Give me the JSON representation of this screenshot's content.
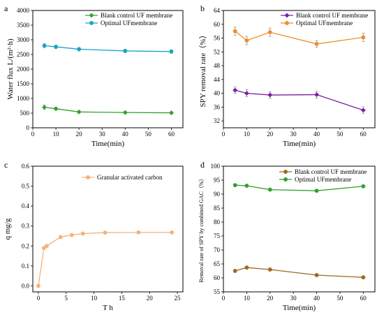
{
  "chart_data": [
    {
      "panel": "a",
      "type": "line",
      "xlabel": "Time(min)",
      "ylabel": "Water flux L/(m²·h)",
      "xlim": [
        0,
        65
      ],
      "ylim": [
        0,
        4000
      ],
      "xticks": [
        0,
        10,
        20,
        30,
        40,
        50,
        60
      ],
      "yticks": [
        0,
        500,
        1000,
        1500,
        2000,
        2500,
        3000,
        3500,
        4000
      ],
      "legend_position": "top-center",
      "series": [
        {
          "name": "Blank control UF membrane",
          "color": "#33a02c",
          "marker": "diamond",
          "x": [
            5,
            10,
            20,
            40,
            60
          ],
          "y": [
            700,
            650,
            540,
            520,
            510
          ],
          "err": [
            80,
            50,
            40,
            40,
            40
          ]
        },
        {
          "name": "Optimal UFmembrane",
          "color": "#1aa3c8",
          "marker": "circle",
          "x": [
            5,
            10,
            20,
            40,
            60
          ],
          "y": [
            2800,
            2760,
            2680,
            2620,
            2600
          ],
          "err": [
            70,
            60,
            60,
            60,
            60
          ]
        }
      ]
    },
    {
      "panel": "b",
      "type": "line",
      "xlabel": "Time(min)",
      "ylabel": "SPY removal rate（%）",
      "xlim": [
        0,
        65
      ],
      "ylim": [
        30,
        64
      ],
      "xticks": [
        0,
        10,
        20,
        30,
        40,
        50,
        60
      ],
      "yticks": [
        32,
        36,
        40,
        44,
        48,
        52,
        56,
        60,
        64
      ],
      "legend_position": "top-right",
      "series": [
        {
          "name": "Blank control UF membrane",
          "color": "#7b1fa2",
          "marker": "diamond",
          "x": [
            5,
            10,
            20,
            40,
            60
          ],
          "y": [
            40.9,
            40.0,
            39.5,
            39.6,
            35.1
          ],
          "err": [
            1.0,
            1.0,
            1.0,
            1.0,
            1.0
          ]
        },
        {
          "name": "Optimal UFmembrane",
          "color": "#f28c28",
          "marker": "circle",
          "x": [
            5,
            10,
            20,
            40,
            60
          ],
          "y": [
            58.0,
            55.3,
            57.7,
            54.3,
            56.2
          ],
          "err": [
            1.2,
            1.2,
            1.2,
            1.0,
            1.2
          ]
        }
      ]
    },
    {
      "panel": "c",
      "type": "line",
      "xlabel": "T h",
      "ylabel": "q mg/g",
      "xlim": [
        -1,
        26
      ],
      "ylim": [
        -0.03,
        0.6
      ],
      "xticks": [
        0,
        5,
        10,
        15,
        20,
        25
      ],
      "yticks": [
        0.0,
        0.1,
        0.2,
        0.3,
        0.4,
        0.5,
        0.6
      ],
      "legend_position": "top-right",
      "series": [
        {
          "name": "Granular activated carbon",
          "color": "#f7b27a",
          "marker": "circle",
          "x": [
            0,
            1,
            1.5,
            4,
            6,
            8,
            12,
            18,
            24
          ],
          "y": [
            0.0,
            0.19,
            0.2,
            0.245,
            0.255,
            0.262,
            0.267,
            0.268,
            0.268
          ]
        }
      ]
    },
    {
      "panel": "d",
      "type": "line",
      "xlabel": "Time(min)",
      "ylabel": "Removal rate of SPY by combined GAC（%）",
      "xlim": [
        0,
        65
      ],
      "ylim": [
        55,
        100
      ],
      "xticks": [
        0,
        10,
        20,
        30,
        40,
        50,
        60
      ],
      "yticks": [
        55,
        60,
        65,
        70,
        75,
        80,
        85,
        90,
        95,
        100
      ],
      "legend_position": "top-right",
      "series": [
        {
          "name": "Blank control UF membrane",
          "color": "#a0681e",
          "marker": "circle",
          "x": [
            5,
            10,
            20,
            40,
            60
          ],
          "y": [
            62.5,
            63.7,
            63.0,
            61.0,
            60.2
          ]
        },
        {
          "name": "Optimal UFmembrane",
          "color": "#33a02c",
          "marker": "circle",
          "x": [
            5,
            10,
            20,
            40,
            60
          ],
          "y": [
            93.2,
            93.0,
            91.6,
            91.2,
            92.8
          ]
        }
      ]
    }
  ]
}
